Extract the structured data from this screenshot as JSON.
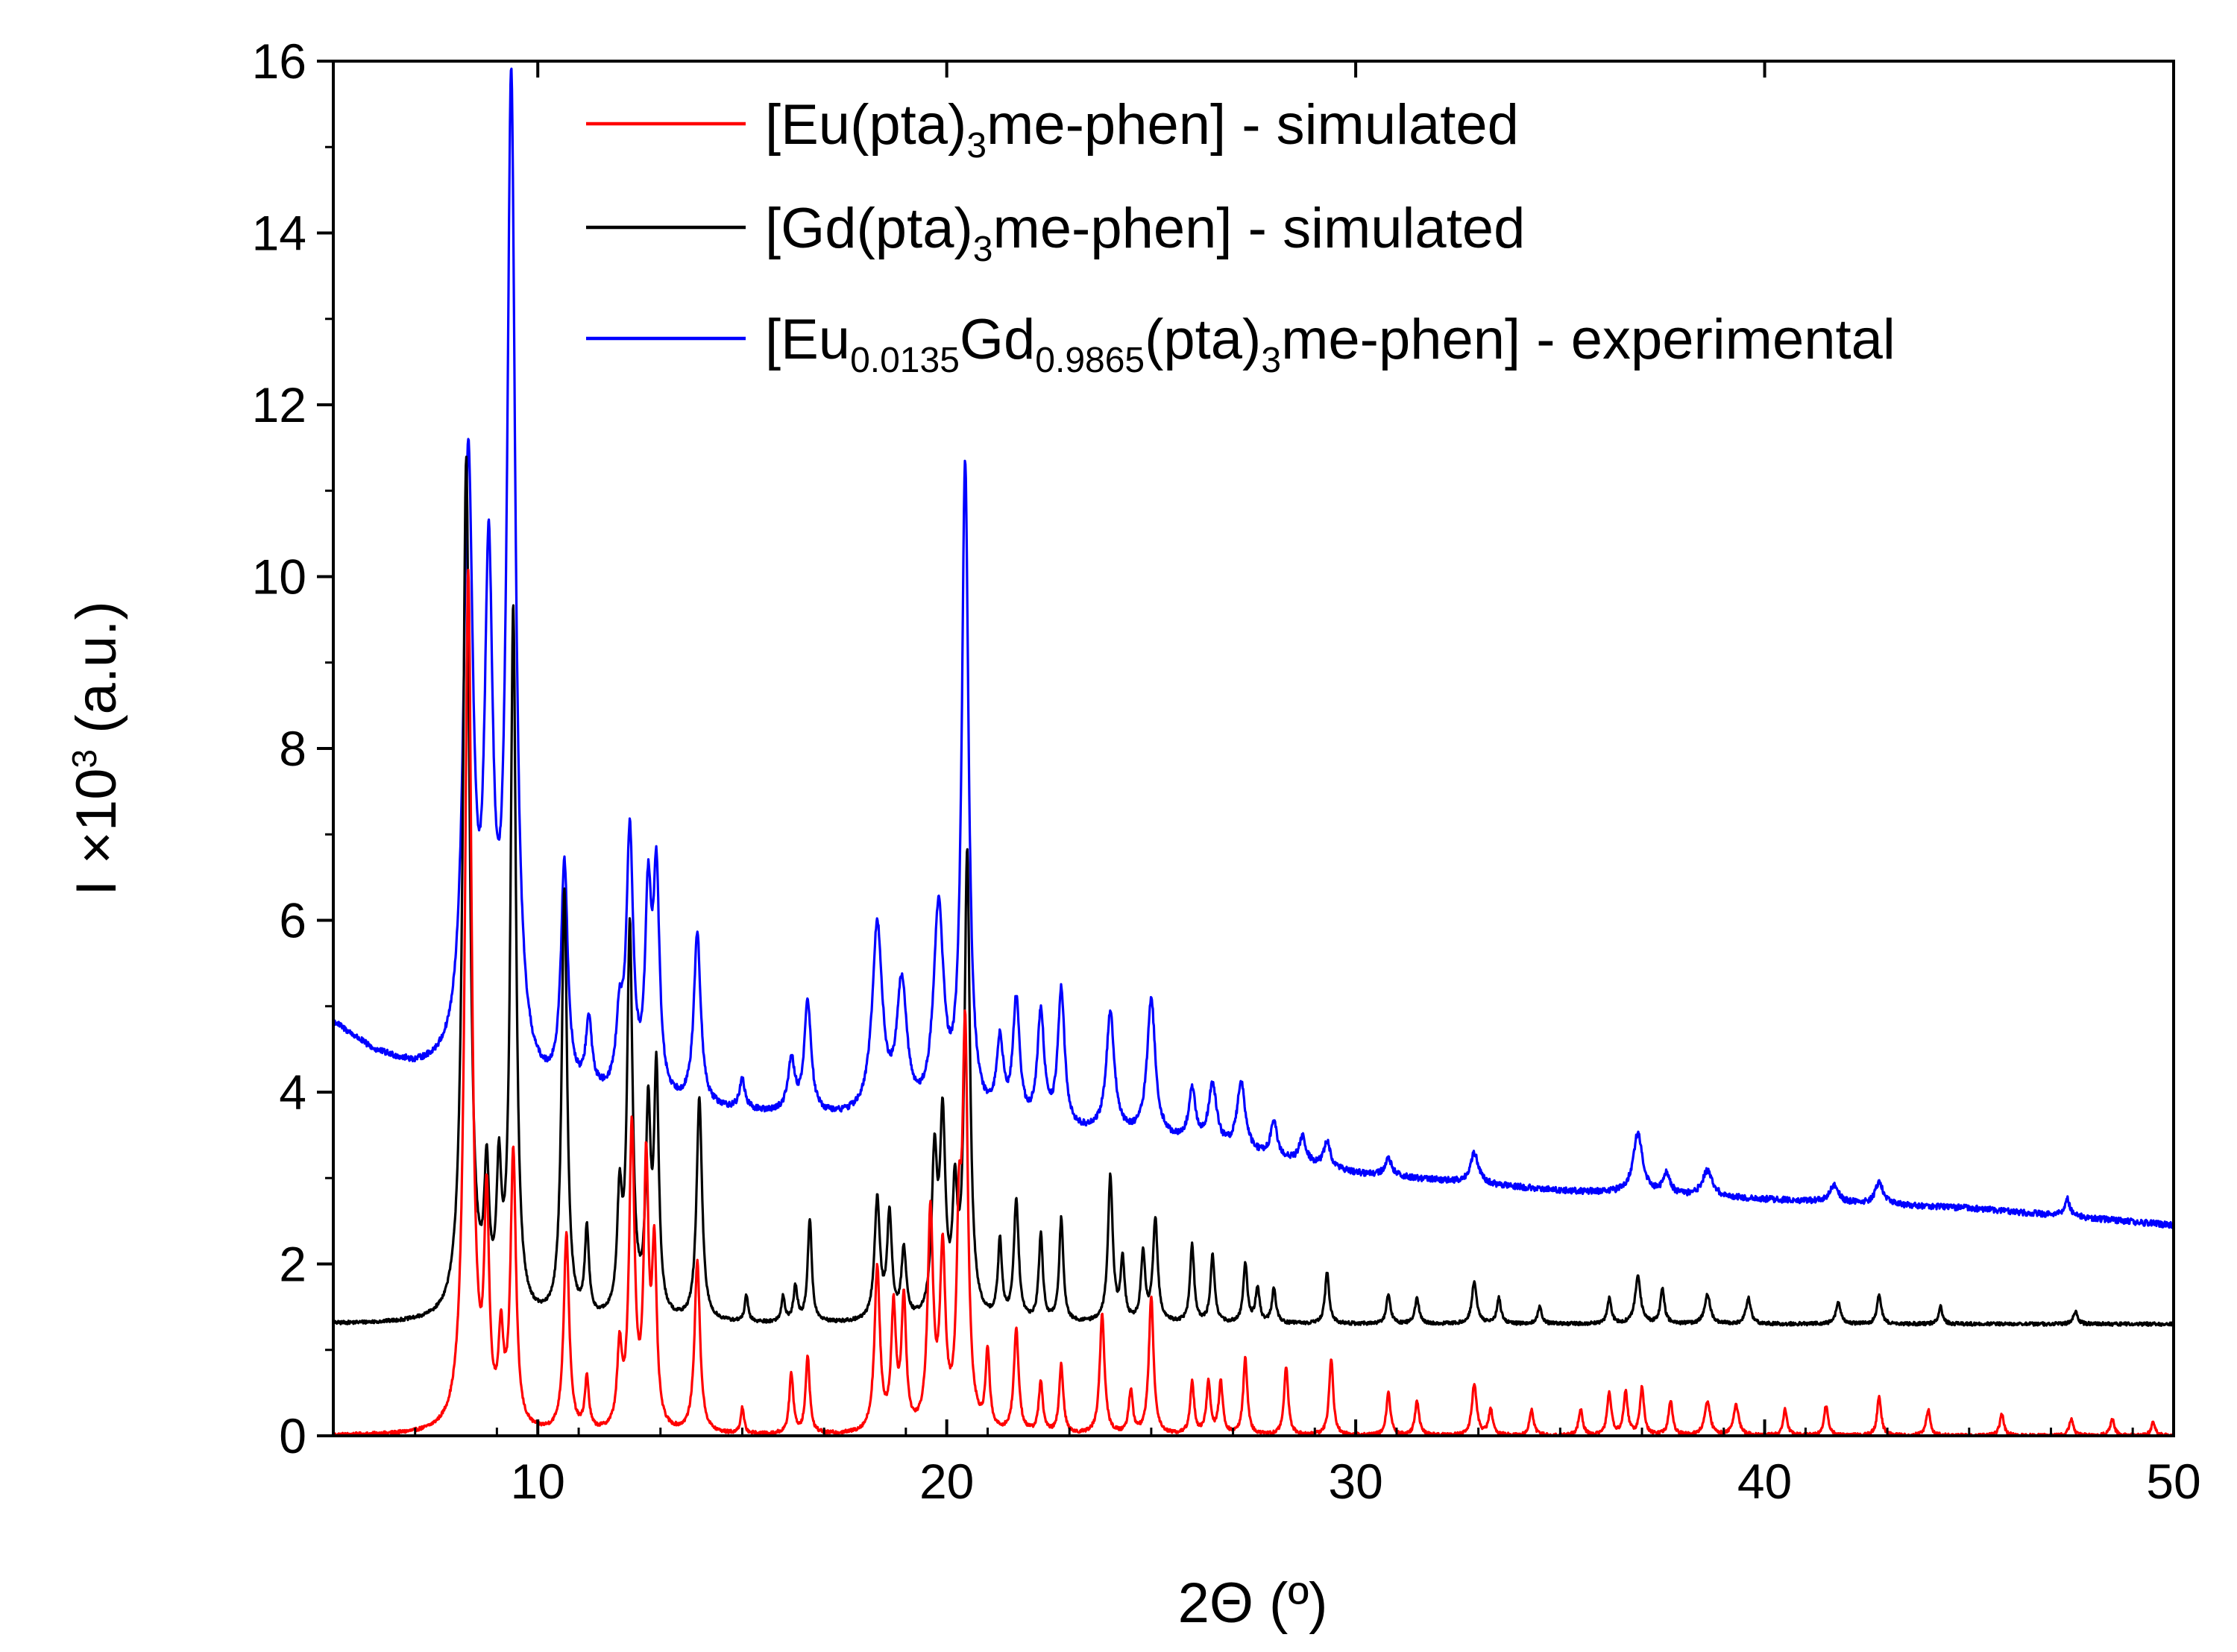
{
  "chart_data": {
    "type": "line",
    "title": "",
    "xlabel": "2Θ (º)",
    "ylabel": {
      "prefix": "I ×10",
      "sup": "3",
      "suffix": " (a.u.)"
    },
    "xlim": [
      5,
      50
    ],
    "ylim": [
      0,
      16
    ],
    "xticks": [
      10,
      20,
      30,
      40,
      50
    ],
    "yticks": [
      0,
      2,
      4,
      6,
      8,
      10,
      12,
      14,
      16
    ],
    "xtick_labels": [
      "10",
      "20",
      "30",
      "40",
      "50"
    ],
    "ytick_labels": [
      "0",
      "2",
      "4",
      "6",
      "8",
      "10",
      "12",
      "14",
      "16"
    ],
    "legend_position": "top-right",
    "series": [
      {
        "name": "[Eu(pta)3me-phen] - simulated",
        "legend_parts": [
          {
            "t": "[Eu(pta)",
            "sub": false
          },
          {
            "t": "3",
            "sub": true
          },
          {
            "t": "me-phen] - simulated",
            "sub": false
          }
        ],
        "color": "#ff0000",
        "baseline": 0,
        "noise": 0.04,
        "tail": [],
        "peaks": [
          [
            8.3,
            10.0,
            0.1
          ],
          [
            8.75,
            2.5,
            0.07
          ],
          [
            9.1,
            1.0,
            0.07
          ],
          [
            9.4,
            3.2,
            0.08
          ],
          [
            10.7,
            2.3,
            0.08
          ],
          [
            11.2,
            0.6,
            0.06
          ],
          [
            12.0,
            0.9,
            0.07
          ],
          [
            12.3,
            3.5,
            0.08
          ],
          [
            12.65,
            3.0,
            0.07
          ],
          [
            12.85,
            2.0,
            0.07
          ],
          [
            13.9,
            2.0,
            0.08
          ],
          [
            15.0,
            0.3,
            0.05
          ],
          [
            16.2,
            0.7,
            0.06
          ],
          [
            16.6,
            0.9,
            0.06
          ],
          [
            18.3,
            1.9,
            0.08
          ],
          [
            18.7,
            1.4,
            0.07
          ],
          [
            18.95,
            1.5,
            0.07
          ],
          [
            19.6,
            2.5,
            0.08
          ],
          [
            19.9,
            2.0,
            0.08
          ],
          [
            20.45,
            4.5,
            0.08
          ],
          [
            20.3,
            2.0,
            0.07
          ],
          [
            21.0,
            0.9,
            0.06
          ],
          [
            21.7,
            1.2,
            0.07
          ],
          [
            22.3,
            0.6,
            0.06
          ],
          [
            22.8,
            0.8,
            0.06
          ],
          [
            23.8,
            1.4,
            0.07
          ],
          [
            24.5,
            0.5,
            0.06
          ],
          [
            25.0,
            1.6,
            0.07
          ],
          [
            26.0,
            0.6,
            0.06
          ],
          [
            26.4,
            0.6,
            0.06
          ],
          [
            26.7,
            0.6,
            0.06
          ],
          [
            27.3,
            0.9,
            0.06
          ],
          [
            28.3,
            0.8,
            0.06
          ],
          [
            29.4,
            0.9,
            0.06
          ],
          [
            30.8,
            0.5,
            0.06
          ],
          [
            31.5,
            0.4,
            0.06
          ],
          [
            32.9,
            0.6,
            0.07
          ],
          [
            33.3,
            0.3,
            0.06
          ],
          [
            34.3,
            0.3,
            0.06
          ],
          [
            35.5,
            0.3,
            0.06
          ],
          [
            36.2,
            0.5,
            0.06
          ],
          [
            36.6,
            0.5,
            0.06
          ],
          [
            37.0,
            0.55,
            0.06
          ],
          [
            37.7,
            0.4,
            0.06
          ],
          [
            38.6,
            0.4,
            0.08
          ],
          [
            39.3,
            0.35,
            0.08
          ],
          [
            40.5,
            0.3,
            0.06
          ],
          [
            41.5,
            0.35,
            0.06
          ],
          [
            42.8,
            0.45,
            0.06
          ],
          [
            44.0,
            0.3,
            0.06
          ],
          [
            45.8,
            0.25,
            0.06
          ],
          [
            47.5,
            0.2,
            0.06
          ],
          [
            48.5,
            0.2,
            0.06
          ],
          [
            49.5,
            0.15,
            0.06
          ]
        ]
      },
      {
        "name": "[Gd(pta)3me-phen] - simulated",
        "legend_parts": [
          {
            "t": "[Gd(pta)",
            "sub": false
          },
          {
            "t": "3",
            "sub": true
          },
          {
            "t": "me-phen] - simulated",
            "sub": false
          }
        ],
        "color": "#000000",
        "baseline": 1.3,
        "noise": 0.04,
        "tail": [],
        "peaks": [
          [
            8.25,
            10.0,
            0.1
          ],
          [
            8.75,
            1.5,
            0.07
          ],
          [
            9.05,
            1.5,
            0.07
          ],
          [
            9.4,
            8.2,
            0.08
          ],
          [
            10.65,
            5.0,
            0.08
          ],
          [
            11.2,
            1.0,
            0.06
          ],
          [
            12.0,
            1.3,
            0.07
          ],
          [
            12.25,
            4.5,
            0.08
          ],
          [
            12.7,
            2.3,
            0.07
          ],
          [
            12.9,
            2.8,
            0.07
          ],
          [
            13.95,
            2.6,
            0.08
          ],
          [
            15.1,
            0.3,
            0.05
          ],
          [
            16.0,
            0.3,
            0.05
          ],
          [
            16.3,
            0.4,
            0.06
          ],
          [
            16.65,
            1.2,
            0.06
          ],
          [
            18.3,
            1.4,
            0.08
          ],
          [
            18.6,
            1.2,
            0.07
          ],
          [
            18.95,
            0.8,
            0.07
          ],
          [
            19.7,
            1.8,
            0.08
          ],
          [
            19.9,
            2.2,
            0.08
          ],
          [
            20.2,
            1.3,
            0.07
          ],
          [
            20.5,
            5.4,
            0.08
          ],
          [
            21.3,
            0.9,
            0.06
          ],
          [
            21.7,
            1.4,
            0.07
          ],
          [
            22.3,
            1.0,
            0.06
          ],
          [
            22.8,
            1.2,
            0.06
          ],
          [
            24.0,
            1.7,
            0.07
          ],
          [
            24.3,
            0.7,
            0.06
          ],
          [
            24.8,
            0.8,
            0.06
          ],
          [
            25.1,
            1.2,
            0.07
          ],
          [
            26.0,
            0.9,
            0.06
          ],
          [
            26.5,
            0.8,
            0.06
          ],
          [
            27.3,
            0.7,
            0.06
          ],
          [
            27.6,
            0.4,
            0.06
          ],
          [
            28.0,
            0.4,
            0.06
          ],
          [
            29.3,
            0.6,
            0.06
          ],
          [
            30.8,
            0.35,
            0.06
          ],
          [
            31.5,
            0.3,
            0.06
          ],
          [
            32.9,
            0.5,
            0.07
          ],
          [
            33.5,
            0.3,
            0.06
          ],
          [
            34.5,
            0.2,
            0.06
          ],
          [
            36.2,
            0.3,
            0.06
          ],
          [
            36.9,
            0.55,
            0.08
          ],
          [
            37.5,
            0.4,
            0.06
          ],
          [
            38.6,
            0.35,
            0.08
          ],
          [
            39.6,
            0.3,
            0.07
          ],
          [
            41.8,
            0.25,
            0.07
          ],
          [
            42.8,
            0.35,
            0.06
          ],
          [
            44.3,
            0.2,
            0.06
          ],
          [
            47.6,
            0.15,
            0.06
          ]
        ]
      },
      {
        "name": "[Eu0.0135Gd0.9865(pta)3me-phen] - experimental",
        "legend_parts": [
          {
            "t": "[Eu",
            "sub": false
          },
          {
            "t": "0.0135",
            "sub": true
          },
          {
            "t": "Gd",
            "sub": false
          },
          {
            "t": "0.9865",
            "sub": true
          },
          {
            "t": "(pta)",
            "sub": false
          },
          {
            "t": "3",
            "sub": true
          },
          {
            "t": "me-phen] - experimental",
            "sub": false
          }
        ],
        "color": "#0000ff",
        "baseline": 0,
        "noise": 0.07,
        "tail": [
          [
            5,
            4.8
          ],
          [
            6,
            4.45
          ],
          [
            7,
            4.25
          ],
          [
            7.8,
            4.2
          ],
          [
            10,
            3.95
          ],
          [
            15,
            3.75
          ],
          [
            20,
            3.6
          ],
          [
            25,
            3.45
          ],
          [
            27,
            3.3
          ],
          [
            30,
            3.05
          ],
          [
            35,
            2.85
          ],
          [
            40,
            2.75
          ],
          [
            45,
            2.65
          ],
          [
            50,
            2.45
          ]
        ],
        "peaks": [
          [
            8.3,
            7.0,
            0.14
          ],
          [
            8.8,
            5.5,
            0.12
          ],
          [
            9.35,
            11.5,
            0.12
          ],
          [
            10.65,
            2.6,
            0.1
          ],
          [
            11.25,
            0.8,
            0.09
          ],
          [
            12.0,
            0.8,
            0.1
          ],
          [
            12.25,
            3.0,
            0.1
          ],
          [
            12.7,
            2.2,
            0.09
          ],
          [
            12.9,
            2.5,
            0.09
          ],
          [
            13.9,
            2.0,
            0.1
          ],
          [
            15.0,
            0.35,
            0.08
          ],
          [
            16.2,
            0.6,
            0.1
          ],
          [
            16.6,
            1.3,
            0.1
          ],
          [
            18.3,
            2.2,
            0.15
          ],
          [
            18.9,
            1.5,
            0.15
          ],
          [
            19.8,
            2.4,
            0.15
          ],
          [
            20.45,
            7.6,
            0.1
          ],
          [
            21.3,
            0.9,
            0.1
          ],
          [
            21.7,
            1.4,
            0.1
          ],
          [
            22.3,
            1.3,
            0.1
          ],
          [
            22.8,
            1.6,
            0.1
          ],
          [
            24.0,
            1.4,
            0.12
          ],
          [
            25.0,
            1.6,
            0.12
          ],
          [
            26.0,
            0.6,
            0.1
          ],
          [
            26.5,
            0.7,
            0.12
          ],
          [
            27.2,
            0.8,
            0.12
          ],
          [
            28.0,
            0.4,
            0.1
          ],
          [
            28.7,
            0.3,
            0.1
          ],
          [
            29.3,
            0.3,
            0.1
          ],
          [
            30.8,
            0.2,
            0.1
          ],
          [
            32.9,
            0.35,
            0.12
          ],
          [
            36.9,
            0.7,
            0.14
          ],
          [
            37.6,
            0.25,
            0.1
          ],
          [
            38.6,
            0.3,
            0.15
          ],
          [
            41.7,
            0.2,
            0.12
          ],
          [
            42.8,
            0.25,
            0.12
          ],
          [
            47.4,
            0.2,
            0.08
          ]
        ]
      }
    ]
  }
}
